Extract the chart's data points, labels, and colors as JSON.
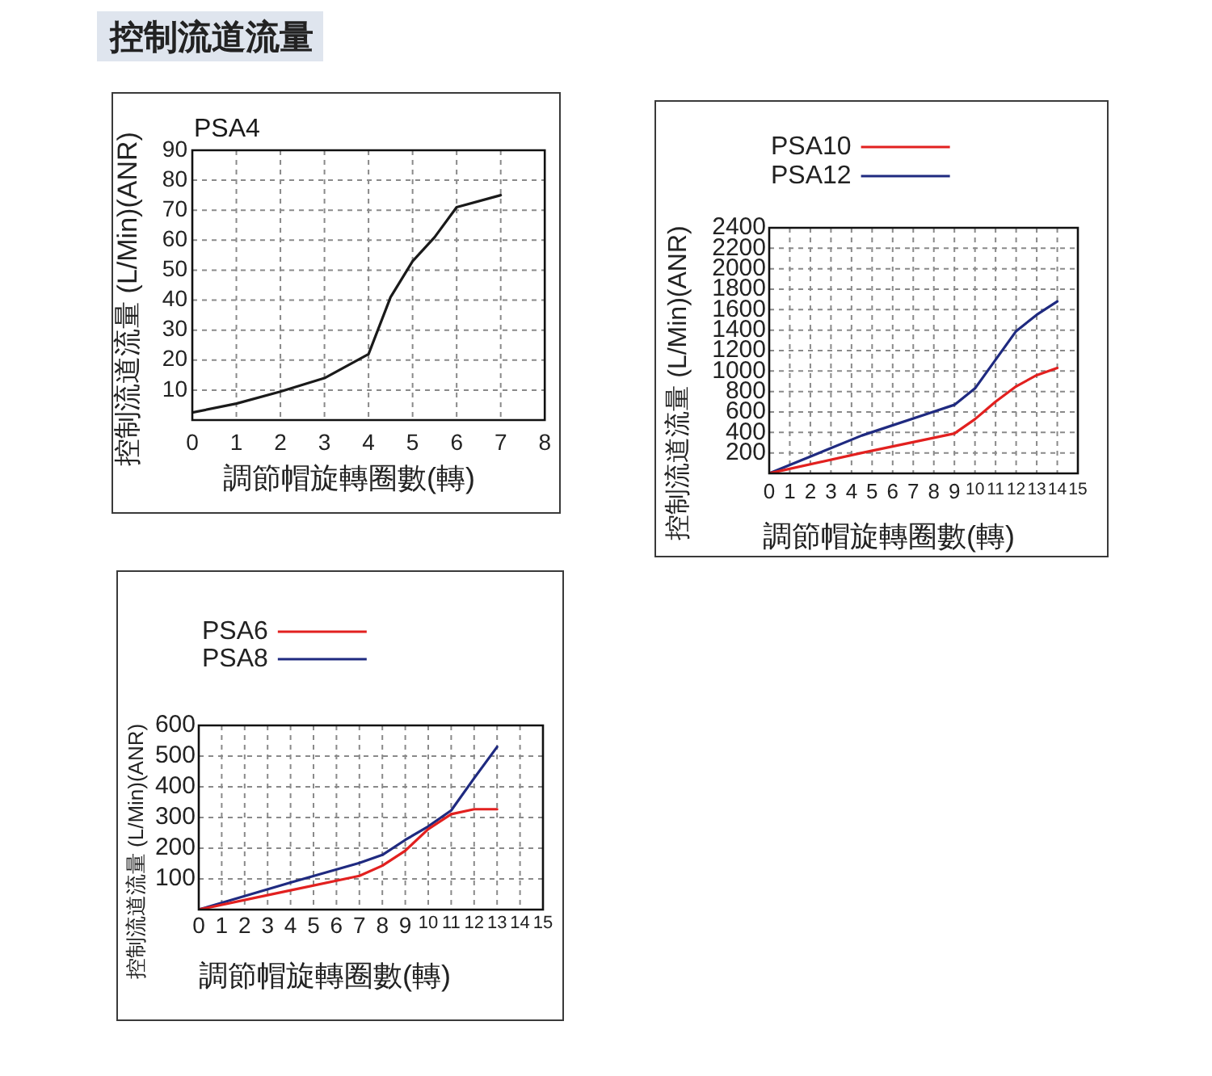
{
  "chart_data": [
    {
      "type": "other",
      "title": "控制流道流量"
    },
    {
      "type": "line",
      "xlabel": "調節帽旋轉圈數(轉)",
      "ylabel": "控制流道流量 (L/Min)(ANR)",
      "series": [
        {
          "name": "PSA4",
          "color": "#1a1a1a",
          "x": [
            0,
            1,
            2,
            3,
            4,
            4.5,
            5,
            5.5,
            6,
            7
          ],
          "values": [
            2.5,
            5.5,
            9.5,
            14,
            22,
            41,
            53,
            61,
            71,
            75
          ]
        }
      ],
      "xlim": [
        0,
        8
      ],
      "xticks": [
        0,
        1,
        2,
        3,
        4,
        5,
        6,
        7,
        8
      ],
      "ylim": [
        0,
        90
      ],
      "yticks": [
        10,
        20,
        30,
        40,
        50,
        60,
        70,
        80,
        90
      ],
      "grid": true,
      "legend": "top left"
    },
    {
      "type": "line",
      "xlabel": "調節帽旋轉圈數(轉)",
      "ylabel": "控制流道流量 (L/Min)(ANR)",
      "series": [
        {
          "name": "PSA10",
          "color": "#e2201f",
          "x": [
            0,
            4.5,
            9,
            10,
            11,
            12,
            13,
            14
          ],
          "values": [
            0,
            200,
            390,
            530,
            700,
            850,
            960,
            1030
          ]
        },
        {
          "name": "PSA12",
          "color": "#1f2a80",
          "x": [
            0,
            4.5,
            9,
            10,
            11,
            12,
            13,
            14
          ],
          "values": [
            0,
            370,
            670,
            830,
            1110,
            1390,
            1550,
            1680
          ]
        }
      ],
      "xlim": [
        0,
        15
      ],
      "xticks": [
        0,
        1,
        2,
        3,
        4,
        5,
        6,
        7,
        8,
        9,
        10,
        11,
        12,
        13,
        14,
        15
      ],
      "ylim": [
        0,
        2400
      ],
      "yticks": [
        200,
        400,
        600,
        800,
        1000,
        1200,
        1400,
        1600,
        1800,
        2000,
        2200,
        2400
      ],
      "grid": true,
      "legend": "top left"
    },
    {
      "type": "line",
      "xlabel": "調節帽旋轉圈數(轉)",
      "ylabel": "控制流道流量 (L/Min)(ANR)",
      "series": [
        {
          "name": "PSA6",
          "color": "#e2201f",
          "x": [
            0,
            4,
            7,
            8,
            9,
            10,
            11,
            12,
            13
          ],
          "values": [
            0,
            63,
            110,
            143,
            192,
            262,
            311,
            327,
            327
          ]
        },
        {
          "name": "PSA8",
          "color": "#1f2a80",
          "x": [
            0,
            4,
            7,
            8,
            9,
            10,
            11,
            12,
            13
          ],
          "values": [
            0,
            88,
            152,
            178,
            227,
            271,
            323,
            428,
            530
          ]
        }
      ],
      "xlim": [
        0,
        15
      ],
      "xticks": [
        0,
        1,
        2,
        3,
        4,
        5,
        6,
        7,
        8,
        9,
        10,
        11,
        12,
        13,
        14,
        15
      ],
      "ylim": [
        0,
        600
      ],
      "yticks": [
        100,
        200,
        300,
        400,
        500,
        600
      ],
      "grid": true,
      "legend": "top left"
    }
  ]
}
